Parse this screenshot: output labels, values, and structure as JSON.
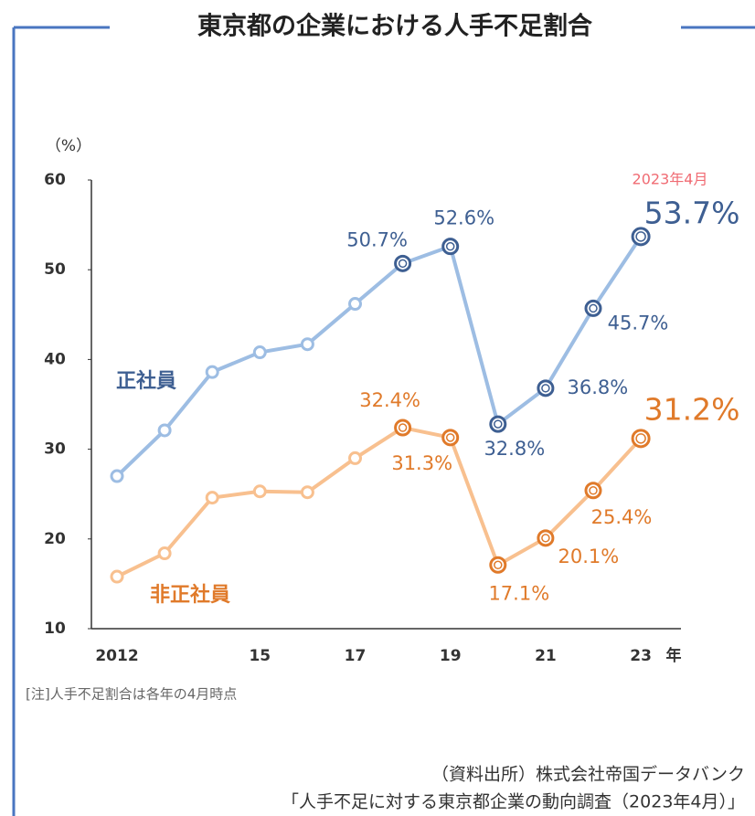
{
  "chart_data": {
    "type": "line",
    "title": "東京都の企業における人手不足割合",
    "y_label": "（%）",
    "x_unit": "年",
    "categories": [
      "2012",
      null,
      null,
      "15",
      null,
      "17",
      null,
      "19",
      null,
      "21",
      null,
      "23"
    ],
    "ylim": [
      10,
      60
    ],
    "yticks": [
      10,
      20,
      30,
      40,
      50,
      60
    ],
    "series": [
      {
        "name": "正社員",
        "color": "#9dbde3",
        "accent_color": "#3e5f92",
        "values": [
          27.0,
          32.1,
          38.6,
          40.8,
          41.7,
          46.2,
          50.7,
          52.6,
          32.8,
          36.8,
          45.7,
          53.7
        ],
        "value_labels": [
          null,
          null,
          null,
          null,
          null,
          null,
          "50.7%",
          "52.6%",
          "32.8%",
          "36.8%",
          "45.7%",
          "53.7%"
        ]
      },
      {
        "name": "非正社員",
        "color": "#f8c08f",
        "accent_color": "#e07a2a",
        "values": [
          15.8,
          18.4,
          24.6,
          25.3,
          25.2,
          29.0,
          32.4,
          31.3,
          17.1,
          20.1,
          25.4,
          31.2
        ],
        "value_labels": [
          null,
          null,
          null,
          null,
          null,
          null,
          "32.4%",
          "31.3%",
          "17.1%",
          "20.1%",
          "25.4%",
          "31.2%"
        ]
      }
    ],
    "annotation": "2023年4月",
    "note": "[注]人手不足割合は各年の4月時点",
    "source": [
      "（資料出所）株式会社帝国データバンク",
      "「人手不足に対する東京都企業の動向調査（2023年4月）」"
    ]
  }
}
